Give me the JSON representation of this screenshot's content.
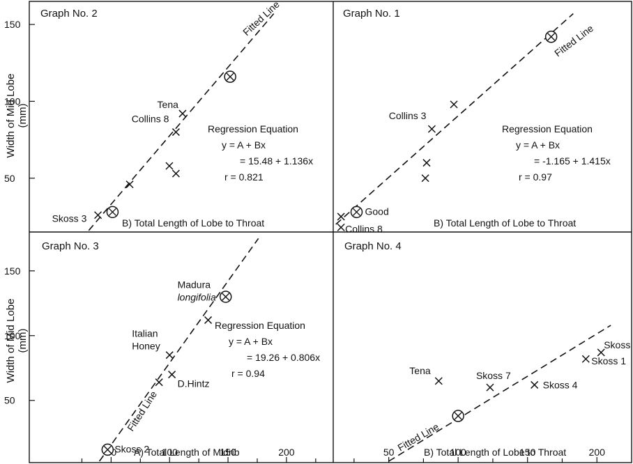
{
  "figure": {
    "ylabel": "Width of Mid Lobe (mm)"
  },
  "chart_data": [
    {
      "id": "g2",
      "type": "scatter",
      "title": "Graph No. 2",
      "xlabel": "B) Total Length of Lobe to Throat",
      "ylabel": "Width of Mid Lobe (mm)",
      "xlim": [
        0,
        230
      ],
      "ylim": [
        15,
        165
      ],
      "y_ticks": [
        50,
        100,
        150
      ],
      "x_ticks": [],
      "points": [
        {
          "x": 52,
          "y": 26,
          "label": "Skoss 3",
          "marker": "cross"
        },
        {
          "x": 76,
          "y": 46,
          "label": "",
          "marker": "cross"
        },
        {
          "x": 111,
          "y": 80,
          "label": "Collins 8",
          "marker": "cross"
        },
        {
          "x": 116,
          "y": 92,
          "label": "Tena",
          "marker": "cross"
        },
        {
          "x": 106,
          "y": 58,
          "label": "",
          "marker": "cross"
        },
        {
          "x": 111,
          "y": 53,
          "label": "",
          "marker": "cross"
        }
      ],
      "circled": [
        {
          "x": 63,
          "y": 28
        },
        {
          "x": 152,
          "y": 116
        }
      ],
      "fit": {
        "label": "Fitted Line",
        "x": [
          45,
          185
        ],
        "y": [
          16,
          157
        ]
      },
      "annotation": [
        "Regression Equation",
        "y = A + Bx",
        "= 15.48 + 1.136x",
        "r = 0.821"
      ]
    },
    {
      "id": "g1",
      "type": "scatter",
      "title": "Graph No. 1",
      "xlabel": "B) Total Length of Lobe to Throat",
      "ylabel": "Width of Mid Lobe (mm)",
      "xlim": [
        0,
        230
      ],
      "ylim": [
        15,
        165
      ],
      "y_ticks": [],
      "x_ticks": [],
      "points": [
        {
          "x": 6,
          "y": 18,
          "label": "Collins 8",
          "marker": "cross"
        },
        {
          "x": 6,
          "y": 25,
          "label": "",
          "marker": "cross"
        },
        {
          "x": 76,
          "y": 82,
          "label": "Collins 3",
          "marker": "cross"
        },
        {
          "x": 93,
          "y": 98,
          "label": "",
          "marker": "cross"
        },
        {
          "x": 72,
          "y": 60,
          "label": "",
          "marker": "cross"
        },
        {
          "x": 71,
          "y": 50,
          "label": "",
          "marker": "cross"
        }
      ],
      "circled": [
        {
          "x": 18,
          "y": 28,
          "label": "Good"
        },
        {
          "x": 168,
          "y": 142
        }
      ],
      "fit": {
        "label": "Fitted Line",
        "x": [
          2,
          185
        ],
        "y": [
          20,
          157
        ]
      },
      "annotation": [
        "Regression Equation",
        "y = A + Bx",
        "= -1.165 + 1.415x",
        "r = 0.97"
      ]
    },
    {
      "id": "g3",
      "type": "scatter",
      "title": "Graph No. 3",
      "xlabel": "A) Total Length of Midrib",
      "ylabel": "Width of Mid Lobe (mm)",
      "xlim": [
        -20,
        240
      ],
      "ylim": [
        2,
        180
      ],
      "y_ticks": [
        50,
        100,
        150
      ],
      "x_ticks": [
        50,
        100,
        150,
        200
      ],
      "points": [
        {
          "x": 133,
          "y": 112,
          "label": "Madura longifolia",
          "marker": "cross"
        },
        {
          "x": 100,
          "y": 85,
          "label": "Italian Honey",
          "marker": "cross"
        },
        {
          "x": 102,
          "y": 70,
          "label": "D.Hintz",
          "marker": "cross"
        },
        {
          "x": 91,
          "y": 64,
          "label": "",
          "marker": "cross"
        }
      ],
      "circled": [
        {
          "x": 148,
          "y": 130
        },
        {
          "x": 47,
          "y": 12,
          "label": "Skoss 2"
        }
      ],
      "fit": {
        "label": "Fitted Line",
        "x": [
          40,
          176
        ],
        "y": [
          2,
          175
        ]
      },
      "annotation": [
        "Regression Equation",
        "y = A + Bx",
        "= 19.26 + 0.806x",
        "r = 0.94"
      ]
    },
    {
      "id": "g4",
      "type": "scatter",
      "title": "Graph No. 4",
      "xlabel": "B) Total Length of Lobe to Throat",
      "ylabel": "Width of Mid Lobe (mm)",
      "xlim": [
        10,
        225
      ],
      "ylim": [
        2,
        180
      ],
      "y_ticks": [],
      "x_ticks": [
        50,
        100,
        150,
        200
      ],
      "points": [
        {
          "x": 86,
          "y": 65,
          "label": "Tena",
          "marker": "cross"
        },
        {
          "x": 123,
          "y": 60,
          "label": "Skoss 7",
          "marker": "cross"
        },
        {
          "x": 155,
          "y": 62,
          "label": "Skoss 4",
          "marker": "cross"
        },
        {
          "x": 192,
          "y": 82,
          "label": "Skoss 1",
          "marker": "cross"
        },
        {
          "x": 203,
          "y": 87,
          "label": "Skoss",
          "marker": "cross"
        }
      ],
      "circled": [
        {
          "x": 100,
          "y": 38
        }
      ],
      "fit": {
        "label": "Fitted Line",
        "x": [
          50,
          210
        ],
        "y": [
          2,
          108
        ]
      },
      "annotation": []
    }
  ]
}
